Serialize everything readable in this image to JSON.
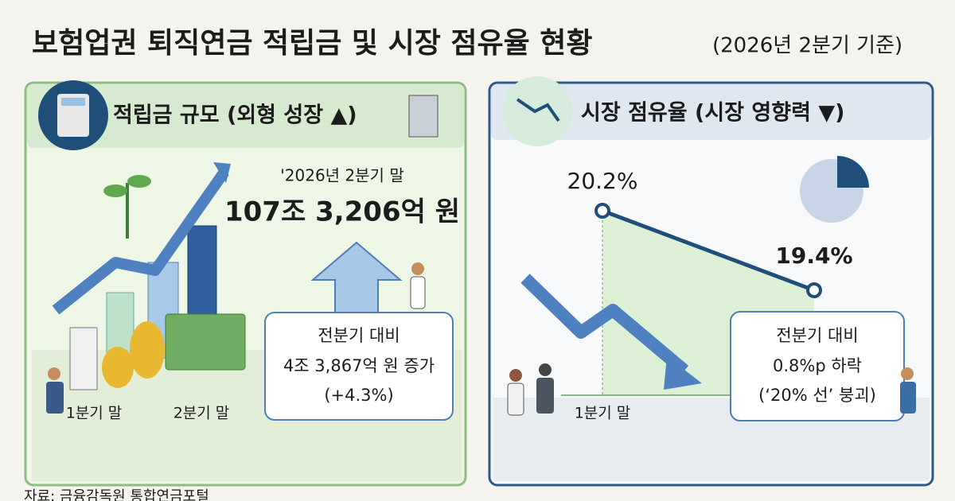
{
  "title": "보험업권 퇴직연금 적립금 및 시장 점유율 현황",
  "subtitle": "(2026년 2분기 기준)",
  "left_panel": {
    "heading": "적립금 규모 (외형 성장 ▲)",
    "period": "'2026년 2분기 말",
    "amount": "107조 3,206억 원",
    "change_lines": [
      "전분기 대비",
      "4조 3,867억 원 증가",
      "(+4.3%)"
    ],
    "x_labels": [
      "1분기 말",
      "2분기 말"
    ]
  },
  "right_panel": {
    "heading": "시장 점유율 (시장 영향력 ▼)",
    "share_chart": {
      "x_label": "1분기 말",
      "values": [
        20.2,
        19.4
      ],
      "value_labels": [
        "20.2%",
        "19.4%"
      ]
    },
    "change_lines": [
      "전분기 대비",
      "0.8%p 하락",
      "(‘20% 선’ 붕괴)"
    ]
  },
  "source": "자료: 금융감독원 통합연금포털"
}
